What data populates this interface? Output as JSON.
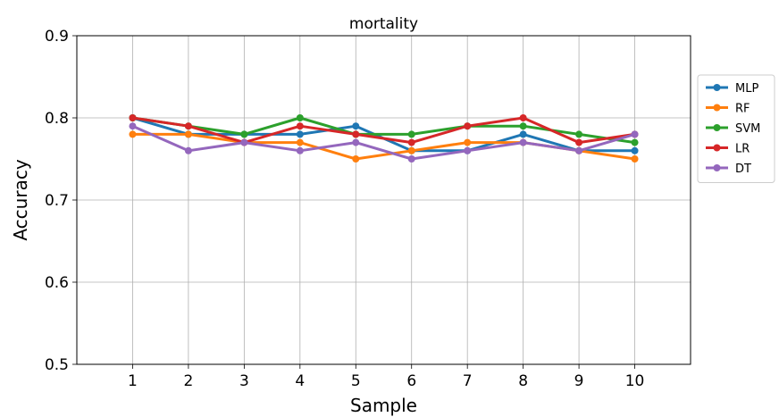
{
  "chart_data": {
    "type": "line",
    "title": "mortality",
    "xlabel": "Sample",
    "ylabel": "Accuracy",
    "x": [
      1,
      2,
      3,
      4,
      5,
      6,
      7,
      8,
      9,
      10
    ],
    "xlim": [
      0,
      11
    ],
    "ylim": [
      0.5,
      0.9
    ],
    "yticks": [
      "0.5",
      "0.6",
      "0.7",
      "0.8",
      "0.9"
    ],
    "grid": true,
    "legend_position": "outside-right",
    "series": [
      {
        "name": "MLP",
        "color": "#1f77b4",
        "values": [
          0.8,
          0.78,
          0.78,
          0.78,
          0.79,
          0.76,
          0.76,
          0.78,
          0.76,
          0.76
        ]
      },
      {
        "name": "RF",
        "color": "#ff7f0e",
        "values": [
          0.78,
          0.78,
          0.77,
          0.77,
          0.75,
          0.76,
          0.77,
          0.77,
          0.76,
          0.75
        ]
      },
      {
        "name": "SVM",
        "color": "#2ca02c",
        "values": [
          0.8,
          0.79,
          0.78,
          0.8,
          0.78,
          0.78,
          0.79,
          0.79,
          0.78,
          0.77
        ]
      },
      {
        "name": "LR",
        "color": "#d62728",
        "values": [
          0.8,
          0.79,
          0.77,
          0.79,
          0.78,
          0.77,
          0.79,
          0.8,
          0.77,
          0.78
        ]
      },
      {
        "name": "DT",
        "color": "#9467bd",
        "values": [
          0.79,
          0.76,
          0.77,
          0.76,
          0.77,
          0.75,
          0.76,
          0.77,
          0.76,
          0.78
        ]
      }
    ]
  }
}
